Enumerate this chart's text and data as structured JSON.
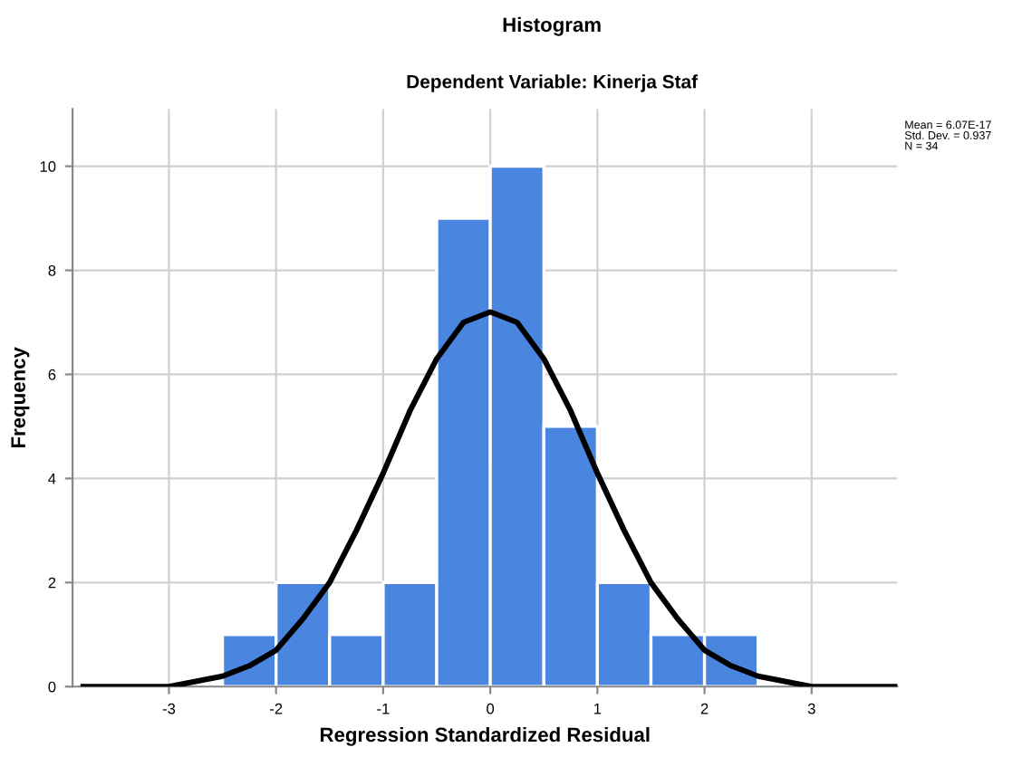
{
  "chart_data": {
    "type": "histogram",
    "title": "Histogram",
    "subtitle": "Dependent Variable: Kinerja Staf",
    "xlabel": "Regression Standardized Residual",
    "ylabel": "Frequency",
    "bins": [
      -2.5,
      -2.0,
      -1.5,
      -1.0,
      -0.5,
      0.0,
      0.5,
      1.0,
      1.5,
      2.0,
      2.5
    ],
    "values": [
      1,
      2,
      1,
      2,
      9,
      10,
      5,
      2,
      1,
      1
    ],
    "color": "#4a86e0",
    "series": [
      {
        "type": "line",
        "color": "#000000",
        "x": [
          -3.8,
          -3.5,
          -3.0,
          -2.75,
          -2.5,
          -2.25,
          -2.0,
          -1.75,
          -1.5,
          -1.25,
          -1.0,
          -0.75,
          -0.5,
          -0.25,
          0.0,
          0.25,
          0.5,
          0.75,
          1.0,
          1.25,
          1.5,
          1.75,
          2.0,
          2.25,
          2.5,
          2.75,
          3.0,
          3.5,
          3.8
        ],
        "values": [
          0.0,
          0.0,
          0.0,
          0.1,
          0.2,
          0.4,
          0.7,
          1.3,
          2.0,
          3.0,
          4.1,
          5.3,
          6.3,
          7.0,
          7.2,
          7.0,
          6.3,
          5.3,
          4.1,
          3.0,
          2.0,
          1.3,
          0.7,
          0.4,
          0.2,
          0.1,
          0.0,
          0.0,
          0.0
        ]
      }
    ],
    "xlim": [
      -3.9,
      3.8
    ],
    "ylim": [
      0,
      11.1
    ],
    "xticks": [
      -3,
      -2,
      -1,
      0,
      1,
      2,
      3
    ],
    "yticks": [
      0,
      2,
      4,
      6,
      8,
      10
    ],
    "grid": true,
    "annotations": [
      "Mean = 6.07E-17\nStd. Dev. = 0.937\nN = 34"
    ]
  }
}
